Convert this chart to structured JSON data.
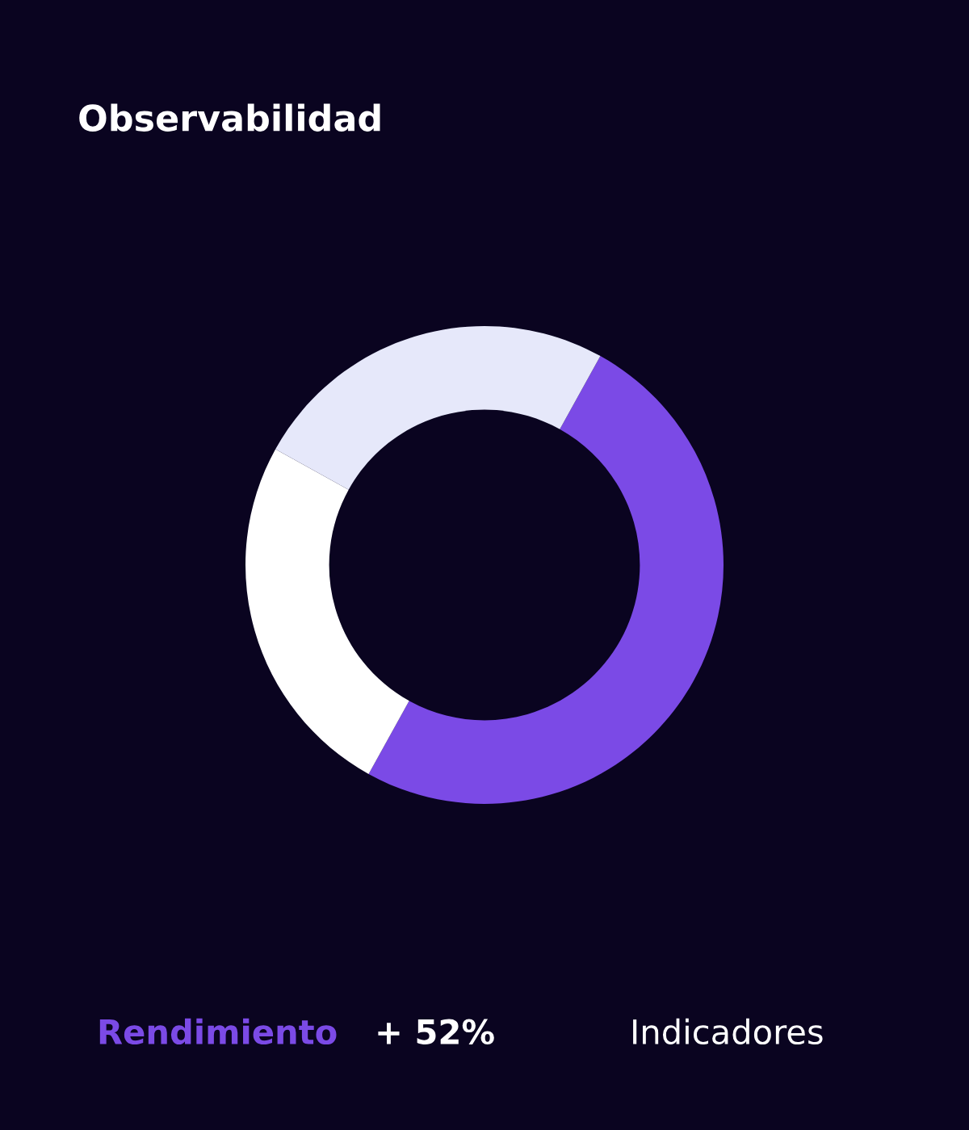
{
  "chart_data": {
    "type": "donut",
    "title": "Observabilidad",
    "categories": [
      null,
      null,
      null
    ],
    "values": [
      50,
      25,
      25
    ],
    "colors": [
      "#7b4ae6",
      "#ffffff",
      "#e6e8fa"
    ],
    "annotations": [
      "Rendimiento",
      "+ 52%",
      "Indicadores"
    ]
  }
}
